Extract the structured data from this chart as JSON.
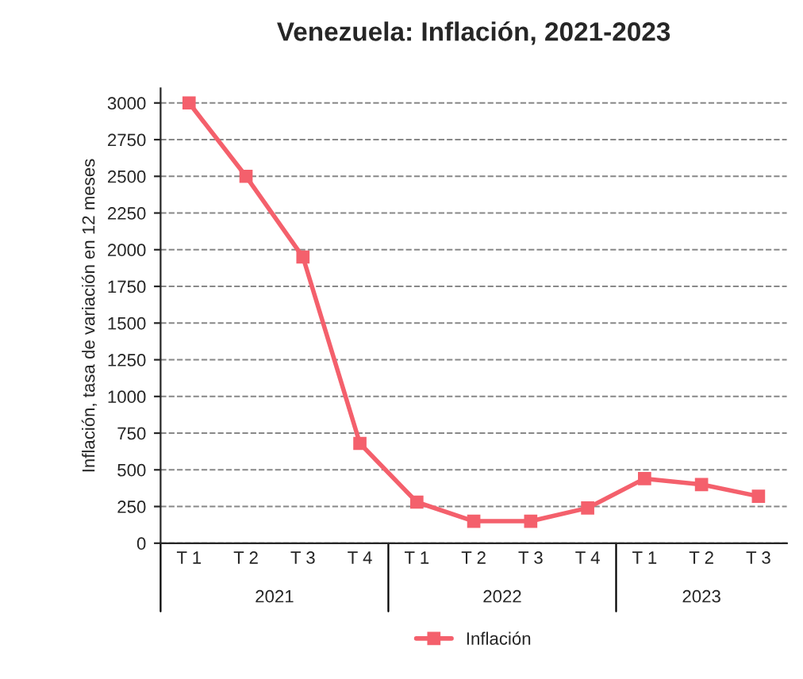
{
  "chart_data": {
    "type": "line",
    "title": "Venezuela: Inflación, 2021-2023",
    "ylabel": "Inflación, tasa de variación en 12 meses",
    "categories": [
      "T 1",
      "T 2",
      "T 3",
      "T 4",
      "T 1",
      "T 2",
      "T 3",
      "T 4",
      "T 1",
      "T 2",
      "T 3"
    ],
    "series": [
      {
        "name": "Inflación",
        "color": "#f4606c",
        "values": [
          3000,
          2500,
          1950,
          680,
          280,
          150,
          150,
          240,
          440,
          400,
          320
        ]
      }
    ],
    "ylim": [
      0,
      3100
    ],
    "yticks": [
      0,
      250,
      500,
      750,
      1000,
      1250,
      1500,
      1750,
      2000,
      2250,
      2500,
      2750,
      3000
    ],
    "grid": "y",
    "legend": "bottom",
    "marker": "square",
    "line_style": "solid",
    "annotations": [
      "2021",
      "2022",
      "2023"
    ]
  }
}
